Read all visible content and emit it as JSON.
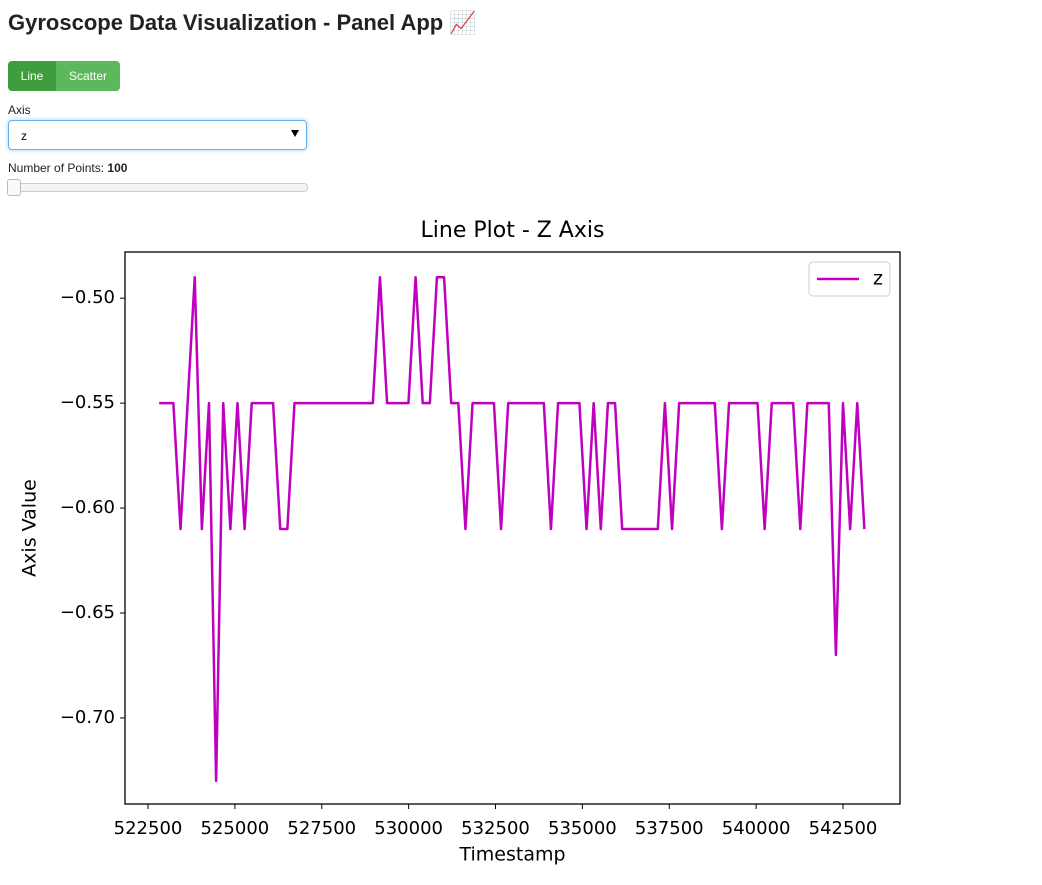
{
  "header": {
    "title": "Gyroscope Data Visualization - Panel App 📈"
  },
  "controls": {
    "plot_type": {
      "options": [
        "Line",
        "Scatter"
      ],
      "selected": "Line"
    },
    "axis": {
      "label": "Axis",
      "value": "z"
    },
    "points": {
      "label": "Number of Points:",
      "value": 100
    }
  },
  "chart_data": {
    "type": "line",
    "title": "Line Plot - Z Axis",
    "x_label": "Timestamp",
    "y_label": "Axis Value",
    "legend": "upper right",
    "x": [
      522820,
      523025,
      523230,
      523435,
      523640,
      523845,
      524050,
      524255,
      524460,
      524665,
      524870,
      525075,
      525280,
      525485,
      525690,
      525895,
      526100,
      526305,
      526510,
      526715,
      526920,
      527125,
      527330,
      527535,
      527740,
      527945,
      528150,
      528355,
      528560,
      528765,
      528970,
      529175,
      529380,
      529585,
      529790,
      529995,
      530200,
      530405,
      530610,
      530815,
      531020,
      531225,
      531430,
      531635,
      531840,
      532045,
      532250,
      532455,
      532660,
      532865,
      533070,
      533275,
      533480,
      533685,
      533890,
      534095,
      534300,
      534505,
      534710,
      534915,
      535120,
      535325,
      535530,
      535735,
      535940,
      536145,
      536350,
      536555,
      536760,
      536965,
      537170,
      537375,
      537580,
      537785,
      537990,
      538195,
      538400,
      538605,
      538810,
      539015,
      539220,
      539425,
      539630,
      539835,
      540040,
      540245,
      540450,
      540655,
      540860,
      541065,
      541270,
      541475,
      541680,
      541885,
      542090,
      542295,
      542500,
      542705,
      542910,
      543115
    ],
    "series": [
      {
        "name": "z",
        "color": "#bf00bf",
        "values": [
          -0.55,
          -0.55,
          -0.55,
          -0.61,
          -0.55,
          -0.49,
          -0.61,
          -0.55,
          -0.73,
          -0.55,
          -0.61,
          -0.55,
          -0.61,
          -0.55,
          -0.55,
          -0.55,
          -0.55,
          -0.61,
          -0.61,
          -0.55,
          -0.55,
          -0.55,
          -0.55,
          -0.55,
          -0.55,
          -0.55,
          -0.55,
          -0.55,
          -0.55,
          -0.55,
          -0.55,
          -0.49,
          -0.55,
          -0.55,
          -0.55,
          -0.55,
          -0.49,
          -0.55,
          -0.55,
          -0.49,
          -0.49,
          -0.55,
          -0.55,
          -0.61,
          -0.55,
          -0.55,
          -0.55,
          -0.55,
          -0.61,
          -0.55,
          -0.55,
          -0.55,
          -0.55,
          -0.55,
          -0.55,
          -0.61,
          -0.55,
          -0.55,
          -0.55,
          -0.55,
          -0.61,
          -0.55,
          -0.61,
          -0.55,
          -0.55,
          -0.61,
          -0.61,
          -0.61,
          -0.61,
          -0.61,
          -0.61,
          -0.55,
          -0.61,
          -0.55,
          -0.55,
          -0.55,
          -0.55,
          -0.55,
          -0.55,
          -0.61,
          -0.55,
          -0.55,
          -0.55,
          -0.55,
          -0.55,
          -0.61,
          -0.55,
          -0.55,
          -0.55,
          -0.55,
          -0.61,
          -0.55,
          -0.55,
          -0.55,
          -0.55,
          -0.67,
          -0.55,
          -0.61,
          -0.55,
          -0.61
        ]
      }
    ],
    "xlim": [
      521838,
      544140
    ],
    "ylim": [
      -0.741,
      -0.478
    ],
    "xticks": [
      522500,
      525000,
      527500,
      530000,
      532500,
      535000,
      537500,
      540000,
      542500
    ],
    "yticks": [
      {
        "value": -0.7,
        "label": "−0.70"
      },
      {
        "value": -0.65,
        "label": "−0.65"
      },
      {
        "value": -0.6,
        "label": "−0.60"
      },
      {
        "value": -0.55,
        "label": "−0.55"
      },
      {
        "value": -0.5,
        "label": "−0.50"
      }
    ],
    "grid": false
  }
}
